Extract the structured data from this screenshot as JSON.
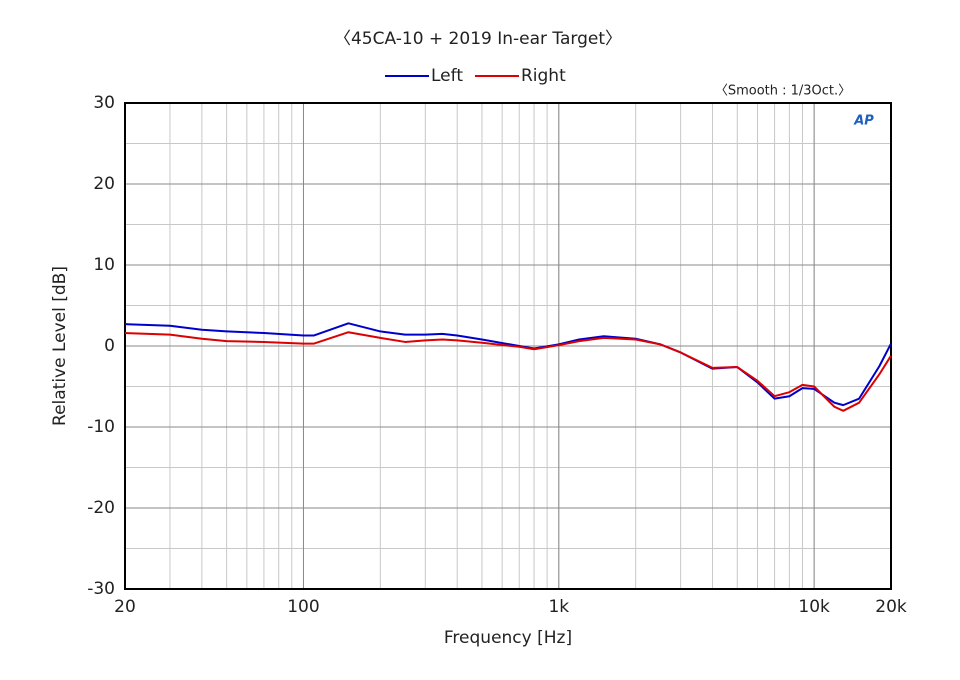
{
  "chart_data": {
    "type": "line",
    "title": "〈45CA-10 + 2019 In-ear Target〉",
    "subtitle": "〈Smooth : 1/3Oct.〉",
    "logo": "AP",
    "x_label": "Frequency [Hz]",
    "y_label": "Relative Level [dB]",
    "x_log": true,
    "grid": true,
    "x": [
      20,
      30,
      40,
      50,
      70,
      100,
      110,
      150,
      200,
      250,
      300,
      350,
      400,
      500,
      700,
      800,
      1000,
      1200,
      1500,
      2000,
      2500,
      3000,
      4000,
      5000,
      6000,
      7000,
      8000,
      9000,
      10000,
      12000,
      13000,
      15000,
      18000,
      20000
    ],
    "series": [
      {
        "name": "Left",
        "color": "#0000cc",
        "values": [
          2.7,
          2.5,
          2.0,
          1.8,
          1.6,
          1.3,
          1.3,
          2.8,
          1.8,
          1.4,
          1.4,
          1.5,
          1.3,
          0.8,
          0.0,
          -0.3,
          0.2,
          0.8,
          1.2,
          0.9,
          0.2,
          -0.8,
          -2.8,
          -2.6,
          -4.5,
          -6.5,
          -6.2,
          -5.2,
          -5.3,
          -7.0,
          -7.3,
          -6.5,
          -2.5,
          0.3
        ]
      },
      {
        "name": "Right",
        "color": "#dd0000",
        "values": [
          1.6,
          1.4,
          0.9,
          0.6,
          0.5,
          0.3,
          0.3,
          1.7,
          1.0,
          0.5,
          0.7,
          0.8,
          0.7,
          0.4,
          -0.1,
          -0.4,
          0.1,
          0.6,
          1.0,
          0.8,
          0.2,
          -0.8,
          -2.7,
          -2.6,
          -4.3,
          -6.2,
          -5.7,
          -4.8,
          -5.0,
          -7.5,
          -8.0,
          -7.0,
          -3.5,
          -1.2
        ]
      }
    ],
    "xlim": [
      20,
      20000
    ],
    "xticks": [
      20,
      100,
      {
        "value": 1000,
        "label": "1k"
      },
      {
        "value": 10000,
        "label": "10k"
      },
      {
        "value": 20000,
        "label": "20k"
      }
    ],
    "ylim": [
      -30,
      30
    ],
    "yticks": [
      30,
      20,
      10,
      0,
      -10,
      -20,
      -30
    ]
  }
}
